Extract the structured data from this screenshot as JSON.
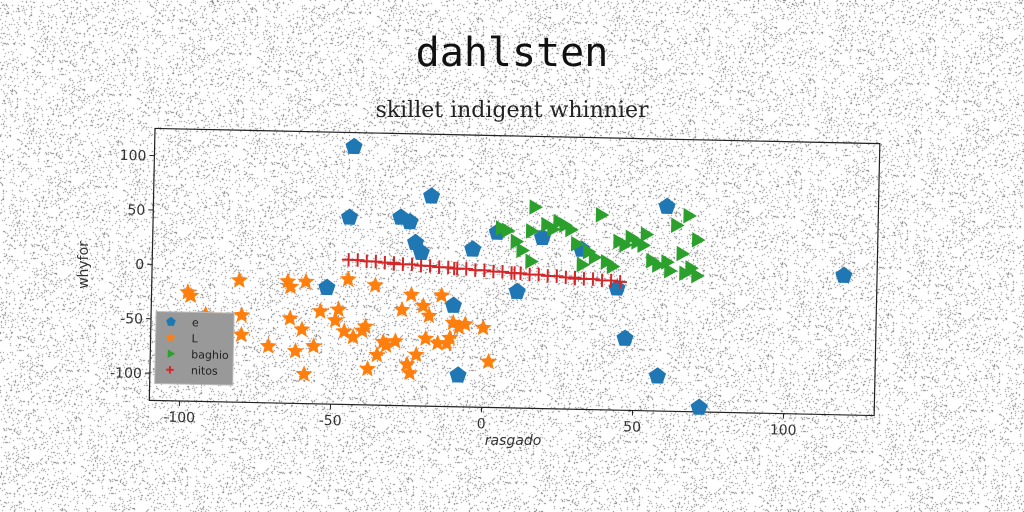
{
  "header": {
    "title": "dahlsten",
    "subtitle": "skillet indigent whinnier"
  },
  "chart_data": {
    "type": "scatter",
    "title": "skillet indigent whinnier",
    "xlabel": "rasgado",
    "ylabel": "whyfor",
    "xlim": [
      -110,
      130
    ],
    "ylim": [
      -125,
      125
    ],
    "xticks": [
      -100,
      -50,
      0,
      50,
      100
    ],
    "yticks": [
      -100,
      -50,
      0,
      50,
      100
    ],
    "grid": false,
    "legend_position": "lower-left",
    "series": [
      {
        "name": "e",
        "marker": "pentagon",
        "color": "#1f77b4",
        "points": [
          [
            -44,
            112
          ],
          [
            -45,
            47
          ],
          [
            -28,
            48
          ],
          [
            -25,
            44
          ],
          [
            -23,
            25
          ],
          [
            -21,
            16
          ],
          [
            -18,
            68
          ],
          [
            -52,
            -18
          ],
          [
            -10,
            -32
          ],
          [
            -8,
            -96
          ],
          [
            -4,
            20
          ],
          [
            4,
            36
          ],
          [
            11,
            -18
          ],
          [
            19,
            32
          ],
          [
            32,
            22
          ],
          [
            44,
            -13
          ],
          [
            47,
            -59
          ],
          [
            58,
            -93
          ],
          [
            60,
            63
          ],
          [
            72,
            -121
          ],
          [
            119,
            3
          ]
        ]
      },
      {
        "name": "L",
        "marker": "star",
        "color": "#ff7f0e",
        "points": [
          [
            -98,
            -25
          ],
          [
            -97,
            -28
          ],
          [
            -92,
            -45
          ],
          [
            -87,
            -50
          ],
          [
            -81,
            -13
          ],
          [
            -80,
            -45
          ],
          [
            -80,
            -63
          ],
          [
            -71,
            -73
          ],
          [
            -65,
            -13
          ],
          [
            -64,
            -18
          ],
          [
            -64,
            -47
          ],
          [
            -62,
            -77
          ],
          [
            -60,
            -57
          ],
          [
            -59,
            -13
          ],
          [
            -59,
            -98
          ],
          [
            -56,
            -72
          ],
          [
            -54,
            -40
          ],
          [
            -49,
            -48
          ],
          [
            -48,
            -38
          ],
          [
            -46,
            -58
          ],
          [
            -45,
            -10
          ],
          [
            -43,
            -63
          ],
          [
            -40,
            -57
          ],
          [
            -39,
            -53
          ],
          [
            -38,
            -92
          ],
          [
            -36,
            -15
          ],
          [
            -35,
            -79
          ],
          [
            -33,
            -67
          ],
          [
            -32,
            -70
          ],
          [
            -29,
            -66
          ],
          [
            -27,
            -37
          ],
          [
            -25,
            -87
          ],
          [
            -24,
            -23
          ],
          [
            -24,
            -95
          ],
          [
            -22,
            -78
          ],
          [
            -20,
            -33
          ],
          [
            -19,
            -63
          ],
          [
            -18,
            -42
          ],
          [
            -15,
            -67
          ],
          [
            -14,
            -23
          ],
          [
            -12,
            -67
          ],
          [
            -11,
            -62
          ],
          [
            -10,
            -48
          ],
          [
            -8,
            -52
          ],
          [
            -6,
            -49
          ],
          [
            2,
            -83
          ],
          [
            0,
            -52
          ]
        ]
      },
      {
        "name": "baghio",
        "marker": "triangle-right",
        "color": "#2ca02c",
        "points": [
          [
            5,
            40
          ],
          [
            7,
            38
          ],
          [
            10,
            28
          ],
          [
            12,
            20
          ],
          [
            15,
            38
          ],
          [
            15,
            10
          ],
          [
            16,
            60
          ],
          [
            20,
            44
          ],
          [
            22,
            40
          ],
          [
            24,
            47
          ],
          [
            26,
            44
          ],
          [
            28,
            40
          ],
          [
            30,
            27
          ],
          [
            32,
            8
          ],
          [
            34,
            20
          ],
          [
            36,
            15
          ],
          [
            38,
            54
          ],
          [
            40,
            11
          ],
          [
            42,
            7
          ],
          [
            44,
            30
          ],
          [
            46,
            27
          ],
          [
            48,
            34
          ],
          [
            50,
            30
          ],
          [
            52,
            27
          ],
          [
            53,
            37
          ],
          [
            55,
            13
          ],
          [
            57,
            9
          ],
          [
            60,
            12
          ],
          [
            61,
            4
          ],
          [
            63,
            46
          ],
          [
            65,
            20
          ],
          [
            66,
            2
          ],
          [
            67,
            55
          ],
          [
            70,
            33
          ],
          [
            70,
            0
          ],
          [
            68,
            7
          ]
        ]
      },
      {
        "name": "nitos",
        "marker": "plus",
        "color": "#d62728",
        "points": [
          [
            -45,
            8
          ],
          [
            -42,
            8
          ],
          [
            -39,
            7
          ],
          [
            -36,
            7
          ],
          [
            -33,
            6
          ],
          [
            -30,
            6
          ],
          [
            -27,
            5
          ],
          [
            -24,
            5
          ],
          [
            -21,
            4
          ],
          [
            -18,
            4
          ],
          [
            -15,
            3
          ],
          [
            -12,
            3
          ],
          [
            -9,
            2
          ],
          [
            -6,
            2
          ],
          [
            -3,
            1
          ],
          [
            0,
            1
          ],
          [
            3,
            0
          ],
          [
            6,
            0
          ],
          [
            9,
            -1
          ],
          [
            12,
            -1
          ],
          [
            15,
            -2
          ],
          [
            18,
            -2
          ],
          [
            21,
            -3
          ],
          [
            24,
            -3
          ],
          [
            27,
            -4
          ],
          [
            30,
            -4
          ],
          [
            33,
            -5
          ],
          [
            36,
            -5
          ],
          [
            39,
            -6
          ],
          [
            42,
            -6
          ],
          [
            45,
            -7
          ],
          [
            -30,
            5
          ],
          [
            -10,
            2
          ],
          [
            10,
            -1
          ],
          [
            30,
            -5
          ]
        ]
      }
    ]
  }
}
